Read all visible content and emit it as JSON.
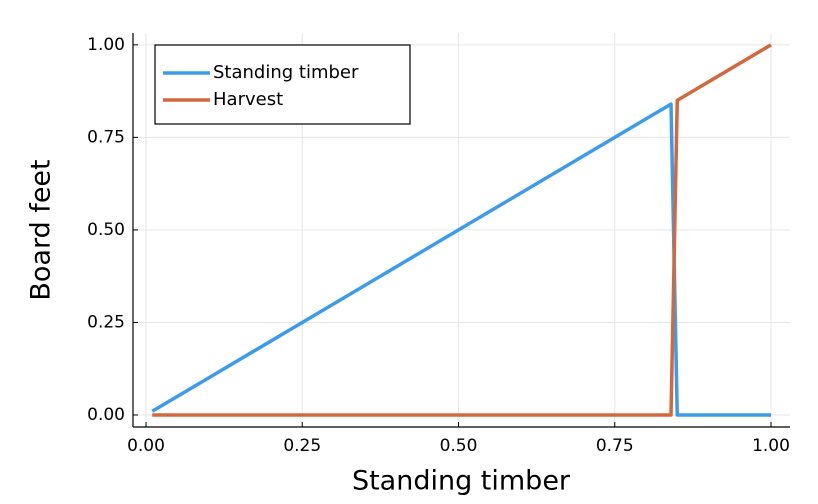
{
  "chart_data": {
    "type": "line",
    "x_label": "Standing timber",
    "y_label": "Board feet",
    "x": [
      0.01,
      0.84,
      0.85,
      1.0
    ],
    "series": [
      {
        "name": "Standing timber",
        "color": "#3e9bea",
        "values": [
          0.01,
          0.84,
          0.0,
          0.0
        ]
      },
      {
        "name": "Harvest",
        "color": "#d2693e",
        "values": [
          0.0,
          0.0,
          0.85,
          1.0
        ]
      }
    ],
    "xlim": [
      -0.0208,
      1.0304
    ],
    "ylim": [
      -0.0324,
      1.032
    ],
    "xticks": [
      {
        "value": 0,
        "label": "0.00"
      },
      0.25,
      {
        "value": 0.5,
        "label": "0.50"
      },
      0.75,
      {
        "value": 1,
        "label": "1.00"
      }
    ],
    "yticks": [
      {
        "value": 0,
        "label": "0.00"
      },
      0.25,
      {
        "value": 0.5,
        "label": "0.50"
      },
      0.75,
      {
        "value": 1,
        "label": "1.00"
      }
    ],
    "grid": true,
    "legend_position": "top-left"
  }
}
